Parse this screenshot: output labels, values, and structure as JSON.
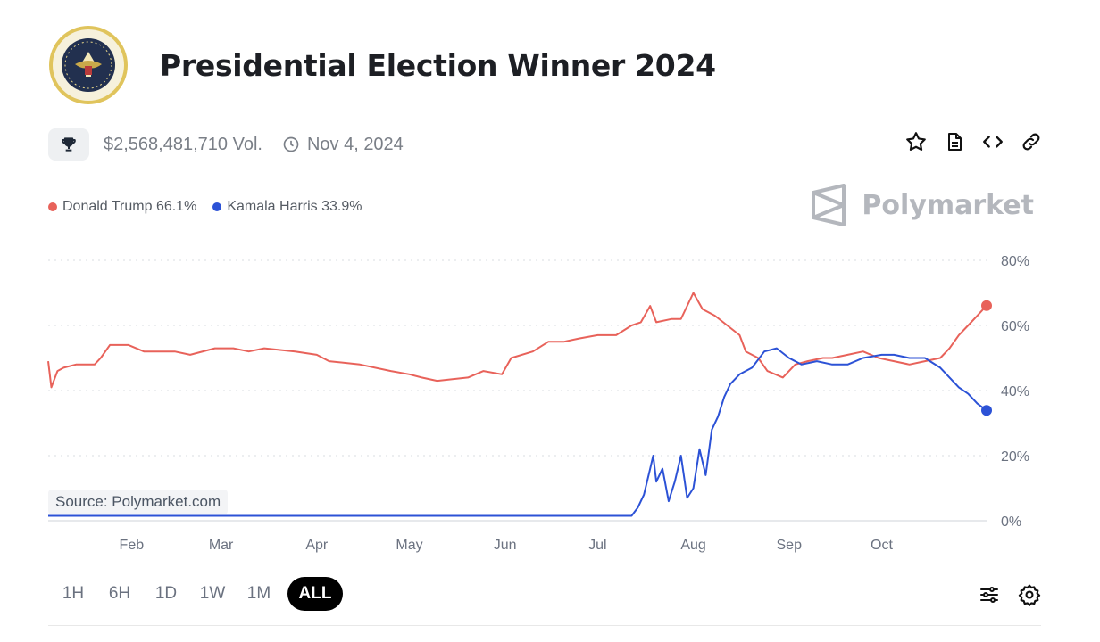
{
  "title": "Presidential Election Winner 2024",
  "volume": "$2,568,481,710 Vol.",
  "date": "Nov 4, 2024",
  "brand": "Polymarket",
  "source": "Source: Polymarket.com",
  "legend": [
    {
      "label": "Donald Trump 66.1%",
      "color": "#e8625a"
    },
    {
      "label": "Kamala Harris 33.9%",
      "color": "#2c52d6"
    }
  ],
  "ranges": [
    "1H",
    "6H",
    "1D",
    "1W",
    "1M",
    "ALL"
  ],
  "active_range": "ALL",
  "icons": {
    "seal": "presidential-seal",
    "trophy": "trophy-icon",
    "clock": "clock-icon",
    "star": "star-icon",
    "document": "document-icon",
    "code": "code-icon",
    "link": "link-icon",
    "sliders": "sliders-icon",
    "settings": "gear-icon"
  },
  "chart_data": {
    "type": "line",
    "xlabel": "",
    "ylabel": "",
    "x_ticks": [
      "Feb",
      "Mar",
      "Apr",
      "May",
      "Jun",
      "Jul",
      "Aug",
      "Sep",
      "Oct"
    ],
    "y_ticks": [
      "0%",
      "20%",
      "40%",
      "60%",
      "80%"
    ],
    "ylim": [
      0,
      80
    ],
    "grid": true,
    "x_range": [
      "2024-01-05",
      "2024-11-04"
    ],
    "series": [
      {
        "name": "Donald Trump",
        "color": "#e8625a",
        "points": [
          [
            "2024-01-05",
            49
          ],
          [
            "2024-01-06",
            41
          ],
          [
            "2024-01-08",
            46
          ],
          [
            "2024-01-10",
            47
          ],
          [
            "2024-01-14",
            48
          ],
          [
            "2024-01-20",
            48
          ],
          [
            "2024-01-22",
            50
          ],
          [
            "2024-01-25",
            54
          ],
          [
            "2024-01-31",
            54
          ],
          [
            "2024-02-05",
            52
          ],
          [
            "2024-02-15",
            52
          ],
          [
            "2024-02-20",
            51
          ],
          [
            "2024-02-28",
            53
          ],
          [
            "2024-03-05",
            53
          ],
          [
            "2024-03-10",
            52
          ],
          [
            "2024-03-15",
            53
          ],
          [
            "2024-03-25",
            52
          ],
          [
            "2024-04-01",
            51
          ],
          [
            "2024-04-05",
            49
          ],
          [
            "2024-04-15",
            48
          ],
          [
            "2024-04-25",
            46
          ],
          [
            "2024-05-01",
            45
          ],
          [
            "2024-05-05",
            44
          ],
          [
            "2024-05-10",
            43
          ],
          [
            "2024-05-20",
            44
          ],
          [
            "2024-05-25",
            46
          ],
          [
            "2024-05-31",
            45
          ],
          [
            "2024-06-03",
            50
          ],
          [
            "2024-06-10",
            52
          ],
          [
            "2024-06-15",
            55
          ],
          [
            "2024-06-20",
            55
          ],
          [
            "2024-06-25",
            56
          ],
          [
            "2024-07-01",
            57
          ],
          [
            "2024-07-07",
            57
          ],
          [
            "2024-07-12",
            60
          ],
          [
            "2024-07-15",
            61
          ],
          [
            "2024-07-18",
            66
          ],
          [
            "2024-07-20",
            61
          ],
          [
            "2024-07-25",
            62
          ],
          [
            "2024-07-28",
            62
          ],
          [
            "2024-08-01",
            70
          ],
          [
            "2024-08-04",
            65
          ],
          [
            "2024-08-08",
            63
          ],
          [
            "2024-08-12",
            60
          ],
          [
            "2024-08-16",
            57
          ],
          [
            "2024-08-18",
            52
          ],
          [
            "2024-08-22",
            50
          ],
          [
            "2024-08-25",
            46
          ],
          [
            "2024-08-30",
            44
          ],
          [
            "2024-09-03",
            48
          ],
          [
            "2024-09-07",
            49
          ],
          [
            "2024-09-12",
            50
          ],
          [
            "2024-09-15",
            50
          ],
          [
            "2024-09-20",
            51
          ],
          [
            "2024-09-25",
            52
          ],
          [
            "2024-09-30",
            50
          ],
          [
            "2024-10-05",
            49
          ],
          [
            "2024-10-10",
            48
          ],
          [
            "2024-10-15",
            49
          ],
          [
            "2024-10-20",
            50
          ],
          [
            "2024-10-23",
            53
          ],
          [
            "2024-10-26",
            57
          ],
          [
            "2024-10-29",
            60
          ],
          [
            "2024-11-01",
            63
          ],
          [
            "2024-11-04",
            66.1
          ]
        ]
      },
      {
        "name": "Kamala Harris",
        "color": "#2c52d6",
        "points": [
          [
            "2024-01-05",
            1.5
          ],
          [
            "2024-02-01",
            1.5
          ],
          [
            "2024-03-01",
            1.5
          ],
          [
            "2024-04-01",
            1.5
          ],
          [
            "2024-05-01",
            1.5
          ],
          [
            "2024-06-01",
            1.5
          ],
          [
            "2024-07-05",
            1.5
          ],
          [
            "2024-07-12",
            1.5
          ],
          [
            "2024-07-14",
            4
          ],
          [
            "2024-07-16",
            8
          ],
          [
            "2024-07-18",
            16
          ],
          [
            "2024-07-19",
            20
          ],
          [
            "2024-07-20",
            12
          ],
          [
            "2024-07-22",
            16
          ],
          [
            "2024-07-24",
            6
          ],
          [
            "2024-07-26",
            12
          ],
          [
            "2024-07-28",
            20
          ],
          [
            "2024-07-30",
            7
          ],
          [
            "2024-08-01",
            10
          ],
          [
            "2024-08-03",
            22
          ],
          [
            "2024-08-05",
            14
          ],
          [
            "2024-08-07",
            28
          ],
          [
            "2024-08-09",
            32
          ],
          [
            "2024-08-11",
            38
          ],
          [
            "2024-08-13",
            42
          ],
          [
            "2024-08-16",
            45
          ],
          [
            "2024-08-20",
            47
          ],
          [
            "2024-08-24",
            52
          ],
          [
            "2024-08-28",
            53
          ],
          [
            "2024-09-01",
            50
          ],
          [
            "2024-09-05",
            48
          ],
          [
            "2024-09-10",
            49
          ],
          [
            "2024-09-15",
            48
          ],
          [
            "2024-09-20",
            48
          ],
          [
            "2024-09-25",
            50
          ],
          [
            "2024-10-01",
            51
          ],
          [
            "2024-10-05",
            51
          ],
          [
            "2024-10-10",
            50
          ],
          [
            "2024-10-15",
            50
          ],
          [
            "2024-10-20",
            47
          ],
          [
            "2024-10-23",
            44
          ],
          [
            "2024-10-26",
            41
          ],
          [
            "2024-10-29",
            39
          ],
          [
            "2024-11-01",
            36
          ],
          [
            "2024-11-04",
            33.9
          ]
        ]
      }
    ]
  }
}
